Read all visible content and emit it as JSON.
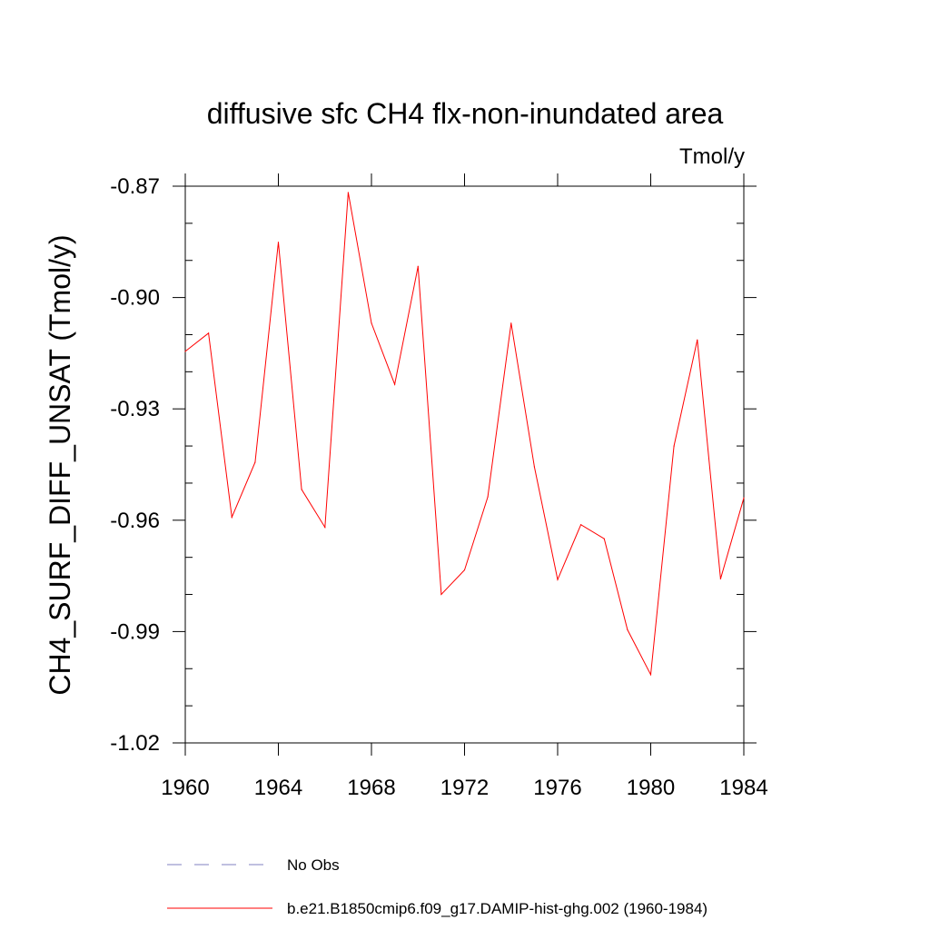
{
  "chart_data": {
    "type": "line",
    "title": "diffusive sfc CH4 flx-non-inundated area",
    "units": "Tmol/y",
    "ylabel": "CH4_SURF_DIFF_UNSAT  (Tmol/y)",
    "xlabel": "",
    "xlim": [
      1960,
      1984
    ],
    "ylim": [
      -1.02,
      -0.87
    ],
    "xticks": [
      1960,
      1964,
      1968,
      1972,
      1976,
      1980,
      1984
    ],
    "xtick_labels": [
      "1960",
      "1964",
      "1968",
      "1972",
      "1976",
      "1980",
      "1984"
    ],
    "yticks": [
      -0.87,
      -0.9,
      -0.93,
      -0.96,
      -0.99,
      -1.02
    ],
    "ytick_labels": [
      "-0.87",
      "-0.90",
      "-0.93",
      "-0.96",
      "-0.99",
      "-1.02"
    ],
    "grid": false,
    "legend_position": "bottom",
    "series": [
      {
        "name": "b.e21.B1850cmip6.f09_g17.DAMIP-hist-ghg.002 (1960-1984)",
        "color": "#ff0000",
        "style": "solid",
        "x": [
          1960,
          1961,
          1962,
          1963,
          1964,
          1965,
          1966,
          1967,
          1968,
          1969,
          1970,
          1971,
          1972,
          1973,
          1974,
          1975,
          1976,
          1977,
          1978,
          1979,
          1980,
          1981,
          1982,
          1983,
          1984
        ],
        "y": [
          -0.9145,
          -0.9096,
          -0.9592,
          -0.9444,
          -0.8851,
          -0.9517,
          -0.9619,
          -0.8717,
          -0.9069,
          -0.9234,
          -0.8916,
          -0.98,
          -0.9734,
          -0.9537,
          -0.9069,
          -0.9456,
          -0.976,
          -0.9612,
          -0.965,
          -0.9895,
          -1.0016,
          -0.94,
          -0.9114,
          -0.9758,
          -0.954
        ]
      }
    ],
    "legend": [
      {
        "label": "No Obs",
        "color": "#8080c0",
        "style": "dashed"
      },
      {
        "label": "b.e21.B1850cmip6.f09_g17.DAMIP-hist-ghg.002 (1960-1984)",
        "color": "#ff0000",
        "style": "solid"
      }
    ]
  }
}
